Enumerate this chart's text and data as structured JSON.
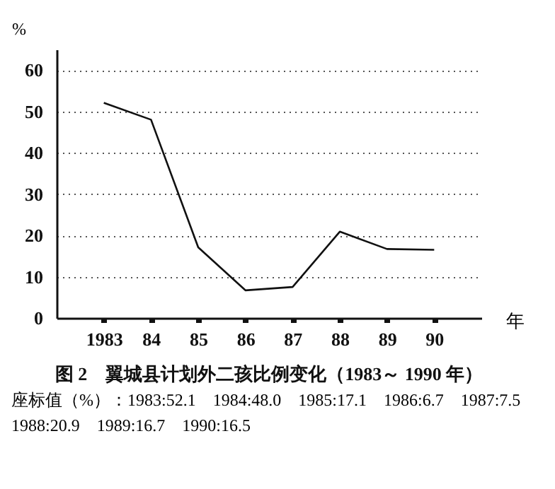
{
  "chart_data": {
    "type": "line",
    "title": "图 2　翼城县计划外二孩比例变化（1983～ 1990 年）",
    "xlabel": "年",
    "ylabel": "%",
    "categories": [
      "1983",
      "84",
      "85",
      "86",
      "87",
      "88",
      "89",
      "90"
    ],
    "values": [
      52.1,
      48.0,
      17.1,
      6.7,
      7.5,
      20.9,
      16.7,
      16.5
    ],
    "color": "#111111",
    "ylim": [
      0,
      65
    ],
    "yticks": [
      0,
      10,
      20,
      30,
      40,
      50,
      60
    ],
    "grid": "y",
    "marker": "none",
    "line_style": "solid",
    "annotations": [
      "座标值（%）：1983:52.1　1984:48.0　1985:17.1　1986:6.7　1987:7.5　1988:20.9　1989:16.7　1990:16.5"
    ]
  }
}
